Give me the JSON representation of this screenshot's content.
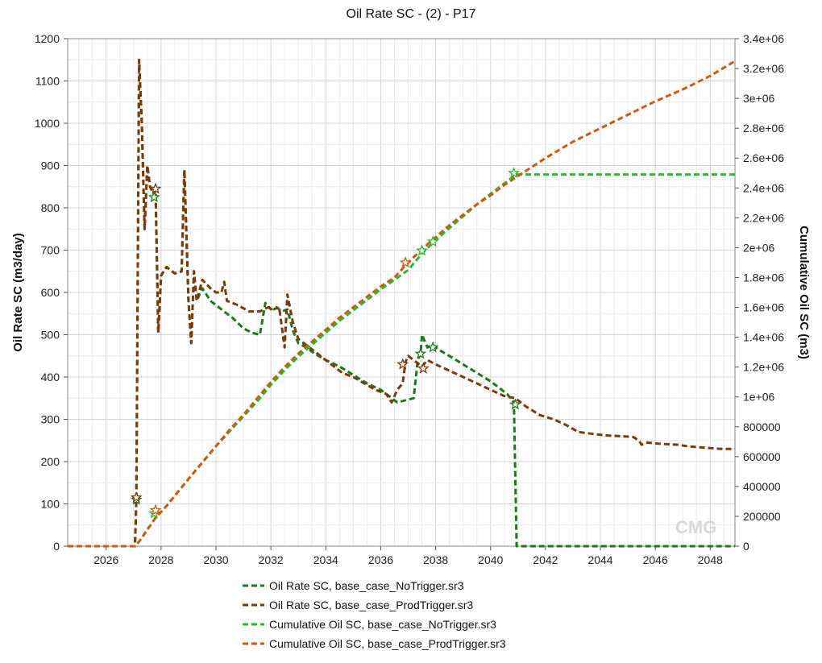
{
  "chart_data": {
    "type": "line",
    "title": "Oil Rate SC - (2) - P17",
    "xlabel": "",
    "ylabel": "Oil Rate SC (m3/day)",
    "y2label": "Cumulative Oil SC (m3)",
    "xlim": [
      2024.6,
      2048.9
    ],
    "ylim": [
      0,
      1200
    ],
    "y2lim": [
      0,
      3400000
    ],
    "x_ticks": [
      "2026",
      "2028",
      "2030",
      "2032",
      "2034",
      "2036",
      "2038",
      "2040",
      "2042",
      "2044",
      "2046",
      "2048"
    ],
    "y_ticks": [
      "0",
      "100",
      "200",
      "300",
      "400",
      "500",
      "600",
      "700",
      "800",
      "900",
      "1000",
      "1100",
      "1200"
    ],
    "y2_ticks": [
      "0",
      "200000",
      "400000",
      "600000",
      "800000",
      "1e+06",
      "1.2e+06",
      "1.4e+06",
      "1.6e+06",
      "1.8e+06",
      "2e+06",
      "2.2e+06",
      "2.4e+06",
      "2.6e+06",
      "2.8e+06",
      "3e+06",
      "3.2e+06",
      "3.4e+06"
    ],
    "grid": true,
    "legend_position": "bottom",
    "watermark": "CMG",
    "series": [
      {
        "name": "Oil Rate SC, base_case_NoTrigger.sr3",
        "axis": "left",
        "color": "#1a7a1a",
        "points": [
          [
            2024.6,
            0
          ],
          [
            2027.05,
            0
          ],
          [
            2027.1,
            110
          ],
          [
            2027.2,
            1150
          ],
          [
            2027.3,
            1000
          ],
          [
            2027.4,
            750
          ],
          [
            2027.5,
            900
          ],
          [
            2027.6,
            850
          ],
          [
            2027.75,
            830
          ],
          [
            2027.8,
            850
          ],
          [
            2027.9,
            505
          ],
          [
            2028.0,
            640
          ],
          [
            2028.2,
            660
          ],
          [
            2028.5,
            645
          ],
          [
            2028.75,
            650
          ],
          [
            2028.85,
            890
          ],
          [
            2029.0,
            580
          ],
          [
            2029.1,
            480
          ],
          [
            2029.2,
            650
          ],
          [
            2029.3,
            580
          ],
          [
            2029.5,
            610
          ],
          [
            2029.8,
            580
          ],
          [
            2030.2,
            560
          ],
          [
            2030.6,
            540
          ],
          [
            2031.0,
            515
          ],
          [
            2031.3,
            505
          ],
          [
            2031.6,
            500
          ],
          [
            2031.8,
            575
          ],
          [
            2032.0,
            560
          ],
          [
            2032.2,
            565
          ],
          [
            2032.4,
            555
          ],
          [
            2032.6,
            560
          ],
          [
            2032.8,
            510
          ],
          [
            2033.0,
            480
          ],
          [
            2033.3,
            470
          ],
          [
            2033.6,
            455
          ],
          [
            2034.0,
            440
          ],
          [
            2034.5,
            425
          ],
          [
            2035.0,
            405
          ],
          [
            2035.5,
            385
          ],
          [
            2036.0,
            370
          ],
          [
            2036.3,
            355
          ],
          [
            2036.6,
            340
          ],
          [
            2036.9,
            345
          ],
          [
            2037.2,
            350
          ],
          [
            2037.35,
            440
          ],
          [
            2037.45,
            455
          ],
          [
            2037.5,
            500
          ],
          [
            2037.7,
            470
          ],
          [
            2037.9,
            475
          ],
          [
            2038.1,
            465
          ],
          [
            2038.5,
            450
          ],
          [
            2039.0,
            430
          ],
          [
            2039.5,
            410
          ],
          [
            2040.0,
            390
          ],
          [
            2040.4,
            370
          ],
          [
            2040.6,
            360
          ],
          [
            2040.85,
            340
          ],
          [
            2040.95,
            0
          ],
          [
            2048.9,
            0
          ]
        ]
      },
      {
        "name": "Oil Rate SC, base_case_ProdTrigger.sr3",
        "axis": "left",
        "color": "#7a3a0a",
        "points": [
          [
            2024.6,
            0
          ],
          [
            2027.05,
            0
          ],
          [
            2027.1,
            110
          ],
          [
            2027.2,
            1150
          ],
          [
            2027.3,
            1000
          ],
          [
            2027.4,
            750
          ],
          [
            2027.5,
            900
          ],
          [
            2027.6,
            850
          ],
          [
            2027.75,
            830
          ],
          [
            2027.8,
            850
          ],
          [
            2027.9,
            505
          ],
          [
            2028.0,
            640
          ],
          [
            2028.2,
            660
          ],
          [
            2028.5,
            645
          ],
          [
            2028.75,
            650
          ],
          [
            2028.85,
            890
          ],
          [
            2029.0,
            580
          ],
          [
            2029.1,
            480
          ],
          [
            2029.2,
            650
          ],
          [
            2029.3,
            580
          ],
          [
            2029.5,
            630
          ],
          [
            2029.8,
            610
          ],
          [
            2030.0,
            600
          ],
          [
            2030.2,
            600
          ],
          [
            2030.3,
            625
          ],
          [
            2030.4,
            580
          ],
          [
            2030.8,
            570
          ],
          [
            2031.2,
            555
          ],
          [
            2031.6,
            555
          ],
          [
            2031.9,
            565
          ],
          [
            2032.1,
            560
          ],
          [
            2032.3,
            565
          ],
          [
            2032.5,
            470
          ],
          [
            2032.6,
            595
          ],
          [
            2032.8,
            530
          ],
          [
            2033.0,
            490
          ],
          [
            2033.4,
            470
          ],
          [
            2033.8,
            450
          ],
          [
            2034.2,
            430
          ],
          [
            2034.6,
            410
          ],
          [
            2035.0,
            400
          ],
          [
            2035.4,
            385
          ],
          [
            2035.8,
            370
          ],
          [
            2036.2,
            360
          ],
          [
            2036.4,
            340
          ],
          [
            2036.6,
            370
          ],
          [
            2036.8,
            385
          ],
          [
            2036.9,
            435
          ],
          [
            2037.0,
            450
          ],
          [
            2037.2,
            440
          ],
          [
            2037.5,
            425
          ],
          [
            2037.7,
            440
          ],
          [
            2038.0,
            430
          ],
          [
            2038.5,
            415
          ],
          [
            2039.0,
            400
          ],
          [
            2039.5,
            385
          ],
          [
            2040.0,
            370
          ],
          [
            2040.5,
            355
          ],
          [
            2040.9,
            350
          ],
          [
            2041.3,
            330
          ],
          [
            2041.8,
            310
          ],
          [
            2042.3,
            300
          ],
          [
            2042.8,
            285
          ],
          [
            2043.2,
            270
          ],
          [
            2043.8,
            265
          ],
          [
            2044.2,
            262
          ],
          [
            2044.8,
            260
          ],
          [
            2045.2,
            258
          ],
          [
            2045.4,
            250
          ],
          [
            2045.5,
            240
          ],
          [
            2045.7,
            245
          ],
          [
            2046.2,
            242
          ],
          [
            2046.8,
            240
          ],
          [
            2047.2,
            236
          ],
          [
            2047.8,
            233
          ],
          [
            2048.4,
            230
          ],
          [
            2048.9,
            230
          ]
        ]
      },
      {
        "name": "Cumulative Oil SC, base_case_NoTrigger.sr3",
        "axis": "right",
        "color": "#2db82d",
        "points": [
          [
            2024.6,
            0
          ],
          [
            2027.05,
            0
          ],
          [
            2027.2,
            30000
          ],
          [
            2027.5,
            110000
          ],
          [
            2027.8,
            190000
          ],
          [
            2028.2,
            270000
          ],
          [
            2028.6,
            360000
          ],
          [
            2029.0,
            450000
          ],
          [
            2029.5,
            560000
          ],
          [
            2030.0,
            670000
          ],
          [
            2030.5,
            770000
          ],
          [
            2031.0,
            870000
          ],
          [
            2031.5,
            970000
          ],
          [
            2032.0,
            1080000
          ],
          [
            2032.5,
            1180000
          ],
          [
            2033.0,
            1270000
          ],
          [
            2033.5,
            1350000
          ],
          [
            2034.0,
            1430000
          ],
          [
            2034.5,
            1510000
          ],
          [
            2035.0,
            1580000
          ],
          [
            2035.5,
            1650000
          ],
          [
            2036.0,
            1720000
          ],
          [
            2036.5,
            1785000
          ],
          [
            2037.0,
            1850000
          ],
          [
            2037.5,
            1960000
          ],
          [
            2038.0,
            2050000
          ],
          [
            2038.5,
            2130000
          ],
          [
            2039.0,
            2210000
          ],
          [
            2039.5,
            2290000
          ],
          [
            2040.0,
            2360000
          ],
          [
            2040.5,
            2430000
          ],
          [
            2040.95,
            2490000
          ],
          [
            2048.9,
            2490000
          ]
        ]
      },
      {
        "name": "Cumulative Oil SC, base_case_ProdTrigger.sr3",
        "axis": "right",
        "color": "#cc5a10",
        "points": [
          [
            2024.6,
            0
          ],
          [
            2027.05,
            0
          ],
          [
            2027.2,
            30000
          ],
          [
            2027.5,
            110000
          ],
          [
            2027.8,
            190000
          ],
          [
            2028.2,
            270000
          ],
          [
            2028.6,
            360000
          ],
          [
            2029.0,
            450000
          ],
          [
            2029.5,
            560000
          ],
          [
            2030.0,
            670000
          ],
          [
            2030.5,
            780000
          ],
          [
            2031.0,
            880000
          ],
          [
            2031.5,
            990000
          ],
          [
            2032.0,
            1100000
          ],
          [
            2032.5,
            1200000
          ],
          [
            2033.0,
            1290000
          ],
          [
            2033.5,
            1370000
          ],
          [
            2034.0,
            1450000
          ],
          [
            2034.5,
            1530000
          ],
          [
            2035.0,
            1600000
          ],
          [
            2035.5,
            1670000
          ],
          [
            2036.0,
            1740000
          ],
          [
            2036.5,
            1800000
          ],
          [
            2036.9,
            1880000
          ],
          [
            2037.5,
            1990000
          ],
          [
            2038.0,
            2070000
          ],
          [
            2038.5,
            2150000
          ],
          [
            2039.0,
            2220000
          ],
          [
            2039.5,
            2290000
          ],
          [
            2040.0,
            2350000
          ],
          [
            2040.5,
            2420000
          ],
          [
            2041.0,
            2480000
          ],
          [
            2042.0,
            2600000
          ],
          [
            2043.0,
            2710000
          ],
          [
            2044.0,
            2800000
          ],
          [
            2045.0,
            2890000
          ],
          [
            2046.0,
            2980000
          ],
          [
            2047.0,
            3060000
          ],
          [
            2048.0,
            3150000
          ],
          [
            2048.9,
            3250000
          ]
        ]
      }
    ],
    "markers": [
      {
        "series": 0,
        "x": 2027.1,
        "y": 110
      },
      {
        "series": 1,
        "x": 2027.1,
        "y": 115
      },
      {
        "series": 0,
        "x": 2027.75,
        "y": 825
      },
      {
        "series": 1,
        "x": 2027.8,
        "y": 845
      },
      {
        "series": 2,
        "x": 2027.75,
        "y": 220000
      },
      {
        "series": 3,
        "x": 2027.8,
        "y": 240000
      },
      {
        "series": 1,
        "x": 2036.8,
        "y": 430
      },
      {
        "series": 0,
        "x": 2037.45,
        "y": 455
      },
      {
        "series": 1,
        "x": 2037.55,
        "y": 420
      },
      {
        "series": 0,
        "x": 2037.9,
        "y": 470
      },
      {
        "series": 3,
        "x": 2036.9,
        "y": 1900000
      },
      {
        "series": 2,
        "x": 2037.5,
        "y": 1980000
      },
      {
        "series": 2,
        "x": 2037.9,
        "y": 2040000
      },
      {
        "series": 0,
        "x": 2040.9,
        "y": 335
      },
      {
        "series": 2,
        "x": 2040.85,
        "y": 2500000
      }
    ]
  }
}
